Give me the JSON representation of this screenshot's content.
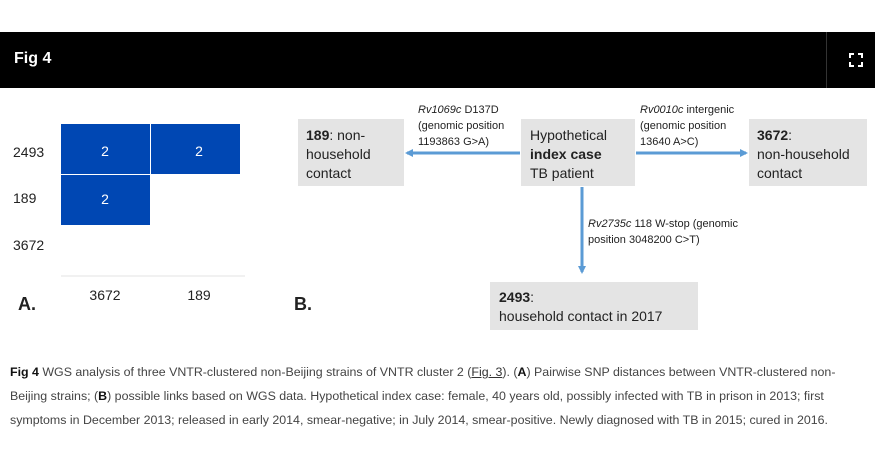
{
  "figure_header": {
    "title": "Fig 4",
    "expand_icon": "fullscreen-expand-icon"
  },
  "panel_a": {
    "letter": "A.",
    "row_labels": [
      "2493",
      "189",
      "3672"
    ],
    "col_labels": [
      "3672",
      "189"
    ],
    "cells": [
      {
        "row": "2493",
        "col": "3672",
        "value": "2"
      },
      {
        "row": "2493",
        "col": "189",
        "value": "2"
      },
      {
        "row": "189",
        "col": "3672",
        "value": "2"
      }
    ],
    "cell_color": "#0047b3"
  },
  "panel_b": {
    "letter": "B.",
    "box_color": "#e4e4e4",
    "arrow_color": "#5b9bd5",
    "center_box": {
      "line1": "Hypothetical",
      "line2": "index case",
      "line3": "TB patient"
    },
    "left_box": {
      "id": "189",
      "line1_rest": ": non-",
      "line2": "household",
      "line3": "contact"
    },
    "right_box": {
      "id": "3672",
      "line1_rest": ":",
      "line2": "non-household",
      "line3": "contact"
    },
    "bottom_box": {
      "id": "2493",
      "line1_rest": ":",
      "line2": "household contact in 2017"
    },
    "left_label": {
      "gene": "Rv1069c",
      "mut": " D137D",
      "line2": "(genomic position",
      "line3": "1193863 G>A)"
    },
    "right_label": {
      "gene": "Rv0010c",
      "mut": " intergenic",
      "line2": "(genomic position",
      "line3": "13640 A>C)"
    },
    "down_label": {
      "gene": "Rv2735c",
      "mut": " 118 W-stop (genomic",
      "line2": "position 3048200 C>T)"
    }
  },
  "caption": {
    "label": "Fig 4",
    "text1": " WGS analysis of three VNTR-clustered non-Beijing strains of VNTR cluster 2 (",
    "link": "Fig. 3",
    "text2": "). (",
    "a": "A",
    "text3": ") Pairwise SNP distances between VNTR-clustered non-Beijing strains; (",
    "b": "B",
    "text4": ") possible links based on WGS data. Hypothetical index case: female, 40 years old, possibly infected with TB in prison in 2013; first symptoms in December 2013; released in early 2014, smear-negative; in July 2014, smear-positive. Newly diagnosed with TB in 2015; cured in 2016."
  }
}
